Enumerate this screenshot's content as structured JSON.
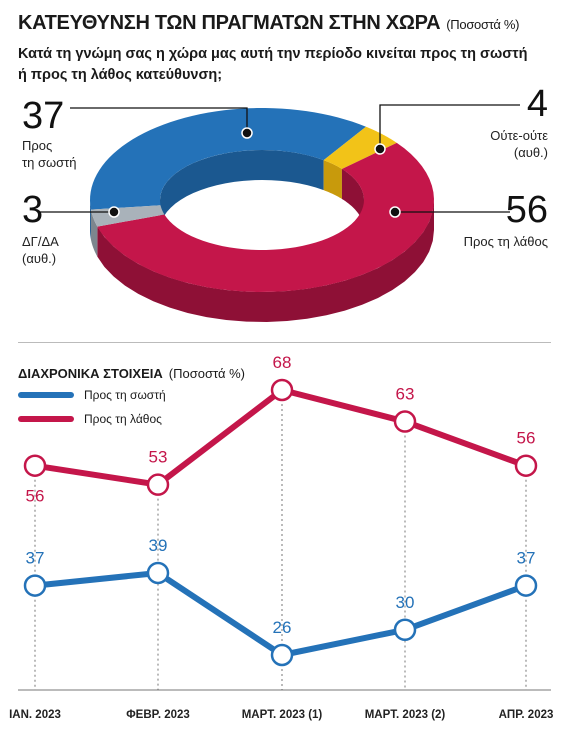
{
  "header": {
    "title": "ΚΑΤΕΥΘΥΝΣΗ ΤΩΝ ΠΡΑΓΜΑΤΩΝ ΣΤΗΝ ΧΩΡΑ",
    "title_unit": "(Ποσοστά %)",
    "question": "Κατά τη γνώμη σας η χώρα μας αυτή την περίοδο κινείται προς τη σωστή ή προς τη λάθος κατεύθυνση;"
  },
  "trend": {
    "title": "ΔΙΑΧΡΟΝΙΚΑ ΣΤΟΙΧΕΙΑ",
    "unit": "(Ποσοστά %)"
  },
  "colors": {
    "blue": "#2472b8",
    "red": "#c4164a",
    "yellow": "#f2c318",
    "gray": "#a9b2ba",
    "darkred": "#8e1036",
    "darkblue": "#1b5890"
  },
  "chart_data": [
    {
      "type": "pie",
      "labels": [
        "Προς τη σωστή",
        "Ούτε-ούτε (αυθ.)",
        "Προς τη λάθος",
        "ΔΓ/ΔΑ (αυθ.)"
      ],
      "values": [
        37,
        4,
        56,
        3
      ],
      "callouts": [
        {
          "value": "37",
          "label_lines": [
            "Προς",
            "τη σωστή"
          ]
        },
        {
          "value": "4",
          "label_lines": [
            "Ούτε-ούτε",
            "(αυθ.)"
          ]
        },
        {
          "value": "56",
          "label_lines": [
            "Προς τη λάθος"
          ]
        },
        {
          "value": "3",
          "label_lines": [
            "ΔΓ/ΔΑ",
            "(αυθ.)"
          ]
        }
      ]
    },
    {
      "type": "line",
      "categories": [
        "ΙΑΝ. 2023",
        "ΦΕΒΡ. 2023",
        "ΜΑΡΤ. 2023 (1)",
        "ΜΑΡΤ. 2023 (2)",
        "ΑΠΡ. 2023"
      ],
      "series": [
        {
          "name": "Προς τη σωστή",
          "values": [
            37,
            39,
            26,
            30,
            37
          ]
        },
        {
          "name": "Προς τη λάθος",
          "values": [
            56,
            53,
            68,
            63,
            56
          ]
        }
      ]
    }
  ]
}
